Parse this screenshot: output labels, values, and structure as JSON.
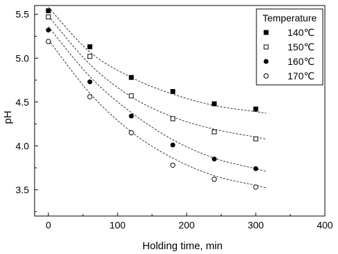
{
  "chart_data": {
    "type": "scatter",
    "xlabel": "Holding time, min",
    "ylabel": "pH",
    "xlim": [
      -20,
      400
    ],
    "ylim": [
      3.2,
      5.6
    ],
    "x_ticks": [
      "0",
      "100",
      "200",
      "300",
      "400"
    ],
    "y_ticks": [
      "3.5",
      "4.0",
      "4.5",
      "5.0",
      "5.5"
    ],
    "grid": false,
    "legend": {
      "title": "Temperature",
      "placement": "top-right"
    },
    "x": [
      0,
      60,
      120,
      180,
      240,
      300
    ],
    "series": [
      {
        "name": "140℃",
        "marker": "filled-square",
        "values": [
          5.54,
          5.13,
          4.78,
          4.62,
          4.48,
          4.42
        ],
        "fit": [
          5.58,
          5.07,
          4.78,
          4.59,
          4.46,
          4.39
        ]
      },
      {
        "name": "150℃",
        "marker": "open-square",
        "values": [
          5.47,
          5.02,
          4.57,
          4.31,
          4.16,
          4.08
        ],
        "fit": [
          5.48,
          4.93,
          4.56,
          4.33,
          4.19,
          4.1
        ]
      },
      {
        "name": "160℃",
        "marker": "filled-circle",
        "values": [
          5.32,
          4.73,
          4.34,
          4.01,
          3.85,
          3.74
        ],
        "fit": [
          5.36,
          4.79,
          4.38,
          4.07,
          3.86,
          3.74
        ]
      },
      {
        "name": "170℃",
        "marker": "open-circle",
        "values": [
          5.19,
          4.56,
          4.15,
          3.78,
          3.62,
          3.53
        ],
        "fit": [
          5.21,
          4.6,
          4.16,
          3.86,
          3.66,
          3.55
        ]
      }
    ],
    "fit_line_style": "dashed"
  }
}
